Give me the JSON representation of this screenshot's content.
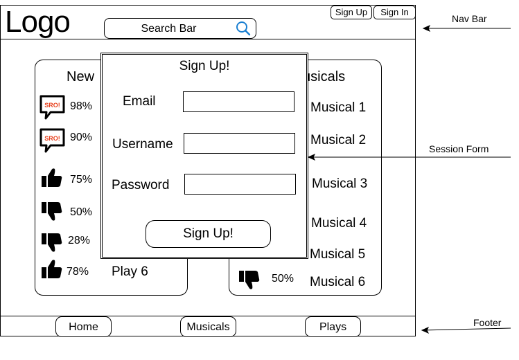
{
  "header": {
    "logo": "Logo",
    "search": {
      "placeholder": "Search Bar",
      "icon": "search-icon"
    },
    "sign_up_label": "Sign Up",
    "sign_in_label": "Sign In"
  },
  "left_panel": {
    "heading": "New",
    "rows": [
      {
        "icon": "sro-speech-bubble-icon",
        "badge": "SRO!",
        "percent": "98%"
      },
      {
        "icon": "sro-speech-bubble-icon",
        "badge": "SRO!",
        "percent": "90%"
      },
      {
        "icon": "thumbs-up-icon",
        "percent": "75%"
      },
      {
        "icon": "thumbs-down-icon",
        "percent": "50%"
      },
      {
        "icon": "thumbs-down-icon",
        "percent": "28%"
      },
      {
        "icon": "thumbs-up-icon",
        "percent": "78%"
      }
    ],
    "last_item": "Play 6"
  },
  "right_panel": {
    "heading": "usicals",
    "items": [
      "Musical 1",
      "Musical 2",
      "Musical 3",
      "Musical 4",
      "Musical 5",
      "Musical 6"
    ],
    "bottom_row": {
      "icon": "thumbs-down-icon",
      "percent": "50%"
    }
  },
  "modal": {
    "title": "Sign Up!",
    "email_label": "Email",
    "username_label": "Username",
    "password_label": "Password",
    "submit_label": "Sign Up!"
  },
  "footer": {
    "buttons": [
      "Home",
      "Musicals",
      "Plays"
    ]
  },
  "annotations": {
    "nav_bar": "Nav Bar",
    "session_form": "Session Form",
    "footer": "Footer"
  },
  "colors": {
    "sro_text": "#e8401c",
    "search_icon": "#1a7fd1"
  }
}
